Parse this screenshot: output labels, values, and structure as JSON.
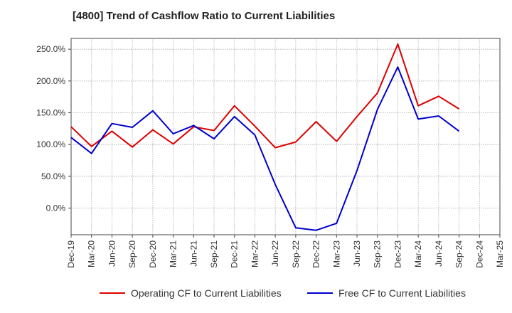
{
  "title": "[4800]  Trend of Cashflow Ratio to Current Liabilities",
  "colors": {
    "operating": "#dd0000",
    "free": "#0000cc",
    "grid": "#aaaaaa",
    "axis": "#444444"
  },
  "chart_data": {
    "type": "line",
    "title": "[4800]  Trend of Cashflow Ratio to Current Liabilities",
    "xlabel": "",
    "ylabel": "",
    "x": [
      "Dec-19",
      "Mar-20",
      "Jun-20",
      "Sep-20",
      "Dec-20",
      "Mar-21",
      "Jun-21",
      "Sep-21",
      "Dec-21",
      "Mar-22",
      "Jun-22",
      "Sep-22",
      "Dec-22",
      "Mar-23",
      "Jun-23",
      "Sep-23",
      "Dec-23",
      "Mar-24",
      "Jun-24",
      "Sep-24",
      "Dec-24",
      "Mar-25"
    ],
    "x_tick_labels": [
      "Dec-19",
      "Mar-20",
      "Jun-20",
      "Sep-20",
      "Dec-20",
      "Mar-21",
      "Jun-21",
      "Sep-21",
      "Dec-21",
      "Mar-22",
      "Jun-22",
      "Sep-22",
      "Dec-22",
      "Mar-23",
      "Jun-23",
      "Sep-23",
      "Dec-23",
      "Mar-24",
      "Jun-24",
      "Sep-24",
      "Dec-24",
      "Mar-25"
    ],
    "y_ticks": [
      0,
      50,
      100,
      150,
      200,
      250
    ],
    "y_tick_labels": [
      "0.0%",
      "50.0%",
      "100.0%",
      "150.0%",
      "200.0%",
      "250.0%"
    ],
    "ylim": [
      -42,
      267
    ],
    "grid": true,
    "legend_position": "bottom",
    "series": [
      {
        "name": "Operating CF to Current Liabilities",
        "color": "#dd0000",
        "values": [
          128,
          97,
          121,
          96,
          123,
          101,
          128,
          122,
          161,
          129,
          95,
          104,
          136,
          105,
          144,
          181,
          258,
          161,
          176,
          156,
          null,
          null
        ]
      },
      {
        "name": "Free CF to Current Liabilities",
        "color": "#0000cc",
        "values": [
          111,
          86,
          133,
          127,
          153,
          117,
          130,
          109,
          144,
          115,
          37,
          -31,
          -35,
          -24,
          59,
          155,
          222,
          140,
          145,
          121,
          null,
          null
        ]
      }
    ]
  }
}
